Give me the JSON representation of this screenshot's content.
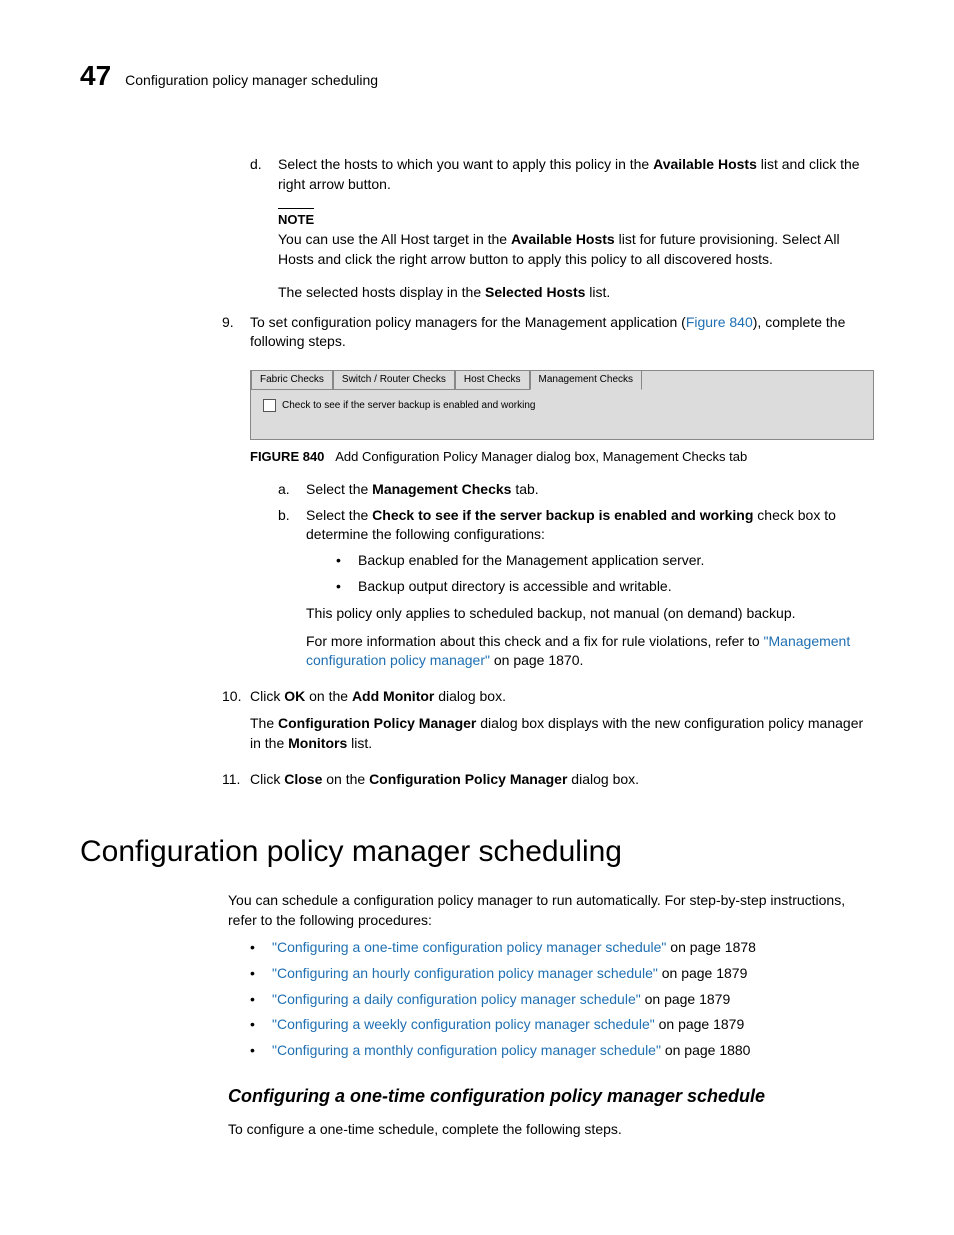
{
  "header": {
    "chapter_num": "47",
    "title": "Configuration policy manager scheduling"
  },
  "step_d": {
    "marker": "d.",
    "text_1": "Select the hosts to which you want to apply this policy in the ",
    "bold_1": "Available Hosts",
    "text_2": " list and click the right arrow button."
  },
  "note1": {
    "label": "NOTE",
    "t1": "You can use the All Host target in the ",
    "b1": "Available Hosts",
    "t2": " list for future provisioning. Select All Hosts and click the right arrow button to apply this policy to all discovered hosts."
  },
  "selected_hosts": {
    "t1": "The selected hosts display in the ",
    "b1": "Selected Hosts",
    "t2": " list."
  },
  "step9": {
    "marker": "9.",
    "t1": "To set configuration policy managers for the Management application (",
    "link": "Figure 840",
    "t2": "), complete the following steps."
  },
  "tabs": {
    "t1": "Fabric Checks",
    "t2": "Switch / Router Checks",
    "t3": "Host Checks",
    "t4": "Management Checks"
  },
  "checkbox_label": "Check to see if the server backup is enabled and working",
  "figure_caption": {
    "num": "FIGURE 840",
    "text": "Add Configuration Policy Manager dialog box, Management Checks tab"
  },
  "step9a": {
    "marker": "a.",
    "t1": "Select the ",
    "b1": "Management Checks",
    "t2": " tab."
  },
  "step9b": {
    "marker": "b.",
    "t1": "Select the ",
    "b1": "Check to see if the server backup is enabled and working",
    "t2": " check box to determine the following configurations:"
  },
  "bullets9b": {
    "i1": "Backup enabled for the Management application server.",
    "i2": "Backup output directory is accessible and writable."
  },
  "p_after_bullets": "This policy only applies to scheduled backup, not manual (on demand) backup.",
  "p_moreinfo": {
    "t1": "For more information about this check and a fix for rule violations, refer to ",
    "link": "\"Management configuration policy manager\"",
    "t2": " on page 1870."
  },
  "step10": {
    "marker": "10.",
    "t1": "Click ",
    "b1": "OK",
    "t2": " on the ",
    "b2": "Add Monitor",
    "t3": " dialog box."
  },
  "step10_p": {
    "t1": "The ",
    "b1": "Configuration Policy Manager",
    "t2": " dialog box displays with the new configuration policy manager in the ",
    "b2": "Monitors",
    "t3": " list."
  },
  "step11": {
    "marker": "11.",
    "t1": "Click ",
    "b1": "Close",
    "t2": " on the ",
    "b2": "Configuration Policy Manager",
    "t3": " dialog box."
  },
  "section_h1": "Configuration policy manager scheduling",
  "section_intro": "You can schedule a configuration policy manager to run automatically. For step-by-step instructions, refer to the following procedures:",
  "sched_links": {
    "i1": {
      "link": "\"Configuring a one-time configuration policy manager schedule\"",
      "after": " on page 1878"
    },
    "i2": {
      "link": "\"Configuring an hourly configuration policy manager schedule\"",
      "after": " on page 1879"
    },
    "i3": {
      "link": "\"Configuring a daily configuration policy manager schedule\"",
      "after": " on page 1879"
    },
    "i4": {
      "link": "\"Configuring a weekly configuration policy manager schedule\"",
      "after": " on page 1879"
    },
    "i5": {
      "link": "\"Configuring a monthly configuration policy manager schedule\"",
      "after": " on page 1880"
    }
  },
  "subsection_h2": "Configuring a one-time configuration policy manager schedule",
  "subsection_intro": "To configure a one-time schedule, complete the following steps."
}
